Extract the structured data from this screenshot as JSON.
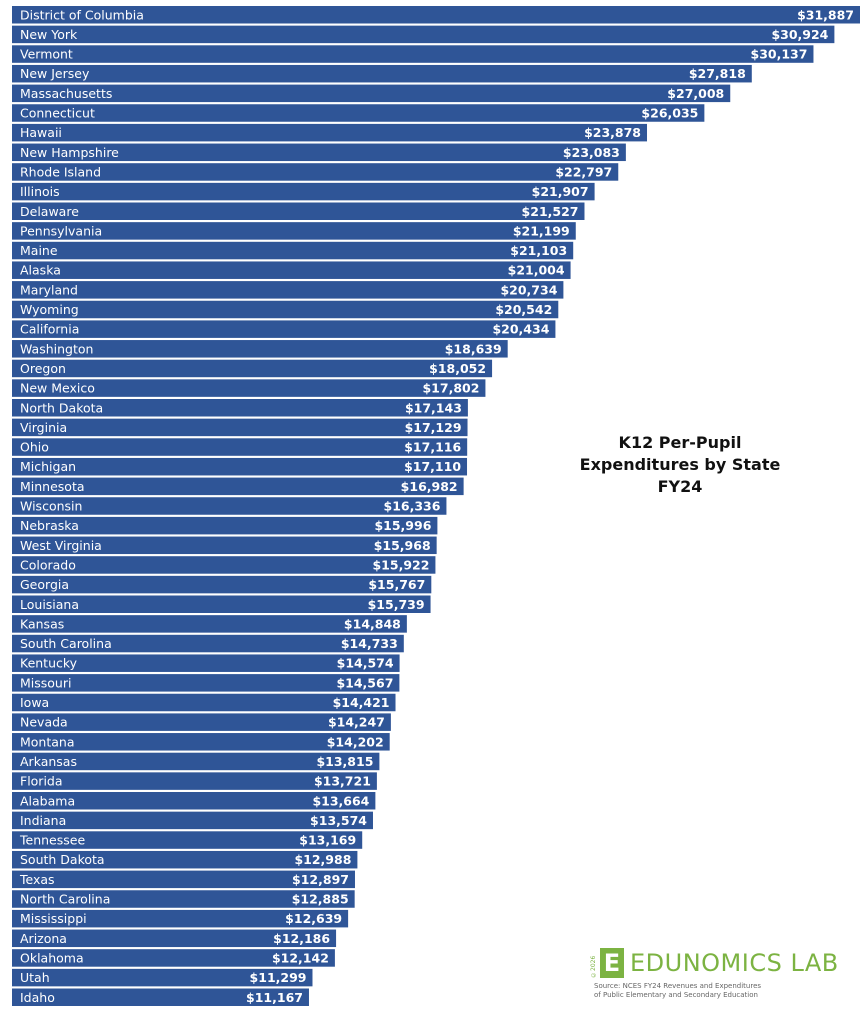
{
  "chart_data": {
    "type": "bar",
    "orientation": "horizontal",
    "title": [
      "K12 Per-Pupil",
      "Expenditures by State",
      "FY24"
    ],
    "bar_color": "#2f5597",
    "label_color": "#ffffff",
    "value_prefix": "$",
    "categories": [
      "District of Columbia",
      "New York",
      "Vermont",
      "New Jersey",
      "Massachusetts",
      "Connecticut",
      "Hawaii",
      "New Hampshire",
      "Rhode Island",
      "Illinois",
      "Delaware",
      "Pennsylvania",
      "Maine",
      "Alaska",
      "Maryland",
      "Wyoming",
      "California",
      "Washington",
      "Oregon",
      "New Mexico",
      "North Dakota",
      "Virginia",
      "Ohio",
      "Michigan",
      "Minnesota",
      "Wisconsin",
      "Nebraska",
      "West Virginia",
      "Colorado",
      "Georgia",
      "Louisiana",
      "Kansas",
      "South Carolina",
      "Kentucky",
      "Missouri",
      "Iowa",
      "Nevada",
      "Montana",
      "Arkansas",
      "Florida",
      "Alabama",
      "Indiana",
      "Tennessee",
      "South Dakota",
      "Texas",
      "North Carolina",
      "Mississippi",
      "Arizona",
      "Oklahoma",
      "Utah",
      "Idaho"
    ],
    "values": [
      31887,
      30924,
      30137,
      27818,
      27008,
      26035,
      23878,
      23083,
      22797,
      21907,
      21527,
      21199,
      21103,
      21004,
      20734,
      20542,
      20434,
      18639,
      18052,
      17802,
      17143,
      17129,
      17116,
      17110,
      16982,
      16336,
      15996,
      15968,
      15922,
      15767,
      15739,
      14848,
      14733,
      14574,
      14567,
      14421,
      14247,
      14202,
      13815,
      13721,
      13664,
      13574,
      13169,
      12988,
      12897,
      12885,
      12639,
      12186,
      12142,
      11299,
      11167
    ],
    "value_labels": [
      "$31,887",
      "$30,924",
      "$30,137",
      "$27,818",
      "$27,008",
      "$26,035",
      "$23,878",
      "$23,083",
      "$22,797",
      "$21,907",
      "$21,527",
      "$21,199",
      "$21,103",
      "$21,004",
      "$20,734",
      "$20,542",
      "$20,434",
      "$18,639",
      "$18,052",
      "$17,802",
      "$17,143",
      "$17,129",
      "$17,116",
      "$17,110",
      "$16,982",
      "$16,336",
      "$15,996",
      "$15,968",
      "$15,922",
      "$15,767",
      "$15,739",
      "$14,848",
      "$14,733",
      "$14,574",
      "$14,567",
      "$14,421",
      "$14,247",
      "$14,202",
      "$13,815",
      "$13,721",
      "$13,664",
      "$13,574",
      "$13,169",
      "$12,988",
      "$12,897",
      "$12,885",
      "$12,639",
      "$12,186",
      "$12,142",
      "$11,299",
      "$11,167"
    ],
    "xlim": [
      0,
      31887
    ]
  },
  "branding": {
    "logo_letter": "E",
    "copyright": "©2026",
    "name": "EDUNOMICS LAB",
    "source_line1": "Source: NCES FY24 Revenues and Expenditures",
    "source_line2": "of Public Elementary and Secondary Education",
    "color": "#7cb342"
  }
}
